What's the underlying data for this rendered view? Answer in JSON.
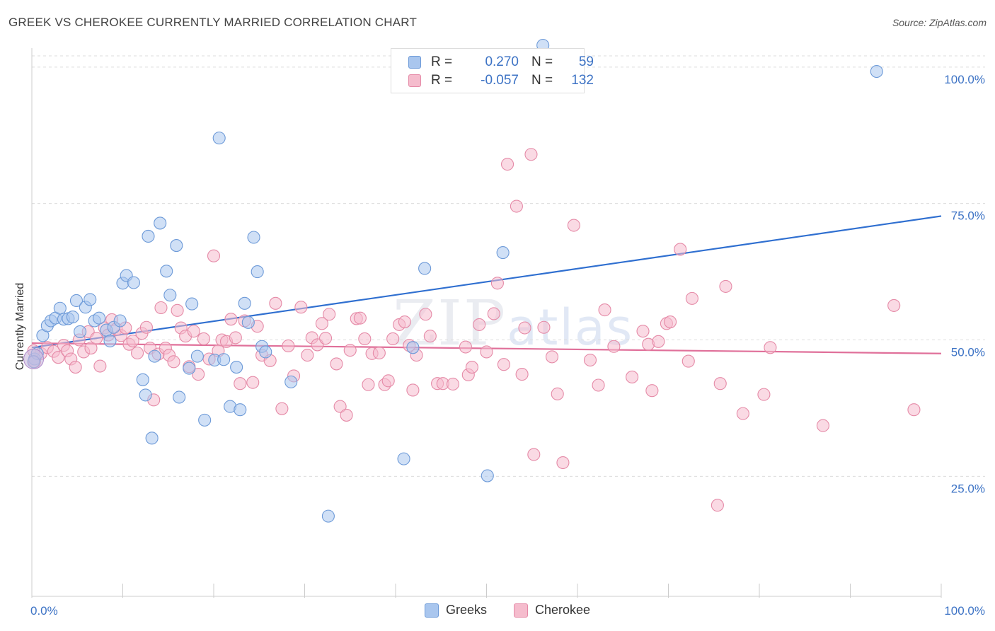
{
  "title": "GREEK VS CHEROKEE CURRENTLY MARRIED CORRELATION CHART",
  "source": "Source: ZipAtlas.com",
  "watermark": {
    "zip": "ZIP",
    "atlas": "atlas"
  },
  "legend": {
    "rows": [
      {
        "r_label": "R =",
        "r_value": "0.270",
        "n_label": "N =",
        "n_value": "59",
        "color": "#a9c6ee",
        "border": "#6d9ad8"
      },
      {
        "r_label": "R =",
        "r_value": "-0.057",
        "n_label": "N =",
        "n_value": "132",
        "color": "#f5bccd",
        "border": "#e58aa7"
      }
    ]
  },
  "bottom_legend": [
    {
      "name": "Greeks",
      "color": "#a9c6ee",
      "border": "#6d9ad8"
    },
    {
      "name": "Cherokee",
      "color": "#f5bccd",
      "border": "#e58aa7"
    }
  ],
  "chart_data": {
    "type": "scatter",
    "title": "GREEK VS CHEROKEE CURRENTLY MARRIED CORRELATION CHART",
    "xlabel": "",
    "ylabel": "Currently Married",
    "xlim": [
      0,
      100
    ],
    "ylim": [
      3,
      104
    ],
    "x_tick_labels": [
      "0.0%",
      "100.0%"
    ],
    "y_ticks": [
      25,
      50,
      75,
      100
    ],
    "y_tick_labels": [
      "25.0%",
      "50.0%",
      "75.0%",
      "100.0%"
    ],
    "grid": true,
    "legend_placement": "top-center",
    "series": [
      {
        "name": "Greeks",
        "color": "#6d9ad8",
        "fill": "#a9c6ee",
        "trend": [
          [
            0,
            48.6
          ],
          [
            100,
            72.7
          ]
        ],
        "points": [
          [
            0.3,
            46.5
          ],
          [
            0.6,
            47.5
          ],
          [
            1.2,
            50.8
          ],
          [
            1.7,
            52.6
          ],
          [
            2.1,
            53.5
          ],
          [
            2.6,
            54
          ],
          [
            3.1,
            55.8
          ],
          [
            3.5,
            53.8
          ],
          [
            4,
            53.9
          ],
          [
            4.5,
            54.2
          ],
          [
            4.9,
            57.2
          ],
          [
            5.3,
            51.5
          ],
          [
            5.9,
            56
          ],
          [
            6.4,
            57.4
          ],
          [
            6.9,
            53.5
          ],
          [
            7.4,
            54
          ],
          [
            8.2,
            51.8
          ],
          [
            8.6,
            49.8
          ],
          [
            9,
            52.3
          ],
          [
            9.7,
            53.5
          ],
          [
            10,
            60.4
          ],
          [
            10.4,
            61.8
          ],
          [
            11.2,
            60.5
          ],
          [
            12.2,
            42.7
          ],
          [
            12.5,
            39.9
          ],
          [
            12.8,
            69
          ],
          [
            13.2,
            32
          ],
          [
            13.5,
            47
          ],
          [
            14.1,
            71.4
          ],
          [
            14.8,
            62.6
          ],
          [
            15.2,
            58.2
          ],
          [
            15.9,
            67.3
          ],
          [
            16.2,
            39.5
          ],
          [
            17.3,
            44.8
          ],
          [
            17.6,
            56.6
          ],
          [
            18.2,
            47
          ],
          [
            19,
            35.3
          ],
          [
            20.1,
            46.3
          ],
          [
            20.6,
            87
          ],
          [
            21.1,
            46.4
          ],
          [
            21.8,
            37.8
          ],
          [
            22.5,
            45
          ],
          [
            22.9,
            37.2
          ],
          [
            23.4,
            56.7
          ],
          [
            23.8,
            53.2
          ],
          [
            24.4,
            68.8
          ],
          [
            24.8,
            62.5
          ],
          [
            25.3,
            48.8
          ],
          [
            25.7,
            47.8
          ],
          [
            28.5,
            42.3
          ],
          [
            32.6,
            17.7
          ],
          [
            40.9,
            28.2
          ],
          [
            41.9,
            48.6
          ],
          [
            43.2,
            63.1
          ],
          [
            50.1,
            25.1
          ],
          [
            51.8,
            66
          ],
          [
            56.2,
            104
          ],
          [
            92.9,
            99.2
          ],
          [
            0.2,
            46
          ]
        ]
      },
      {
        "name": "Cherokee",
        "color": "#e58aa7",
        "fill": "#f5bccd",
        "trend": [
          [
            0,
            49.4
          ],
          [
            100,
            47.5
          ]
        ],
        "points": [
          [
            0.3,
            46
          ],
          [
            1,
            47.5
          ],
          [
            1.7,
            48.6
          ],
          [
            2.4,
            47.9
          ],
          [
            2.9,
            46.8
          ],
          [
            3.5,
            49
          ],
          [
            3.9,
            48
          ],
          [
            4.3,
            46.5
          ],
          [
            4.8,
            45
          ],
          [
            5.2,
            50
          ],
          [
            5.7,
            47.8
          ],
          [
            6.2,
            51.5
          ],
          [
            6.5,
            48.5
          ],
          [
            7.1,
            50.3
          ],
          [
            7.5,
            45.2
          ],
          [
            8,
            52.2
          ],
          [
            8.4,
            50.9
          ],
          [
            8.8,
            53.7
          ],
          [
            9.3,
            52
          ],
          [
            9.8,
            50.8
          ],
          [
            10.3,
            52.2
          ],
          [
            10.7,
            49.2
          ],
          [
            11.1,
            49.8
          ],
          [
            11.6,
            47.6
          ],
          [
            12.1,
            51.2
          ],
          [
            12.6,
            52.3
          ],
          [
            13,
            48.5
          ],
          [
            13.4,
            39
          ],
          [
            13.9,
            47.4
          ],
          [
            14.2,
            55.9
          ],
          [
            14.7,
            48.5
          ],
          [
            15.1,
            47.2
          ],
          [
            15.6,
            46
          ],
          [
            16,
            55.4
          ],
          [
            16.4,
            52.2
          ],
          [
            16.9,
            50.7
          ],
          [
            17.3,
            45.1
          ],
          [
            17.8,
            51.6
          ],
          [
            18.3,
            43.7
          ],
          [
            18.9,
            50.2
          ],
          [
            19.5,
            46.5
          ],
          [
            20,
            65.4
          ],
          [
            20.5,
            48
          ],
          [
            20.9,
            50
          ],
          [
            21.4,
            49.7
          ],
          [
            21.9,
            53.8
          ],
          [
            22.4,
            50.4
          ],
          [
            22.9,
            42
          ],
          [
            23.4,
            53.5
          ],
          [
            24.3,
            42.2
          ],
          [
            24.8,
            52.5
          ],
          [
            25.3,
            47.2
          ],
          [
            26.2,
            46.2
          ],
          [
            26.8,
            56.7
          ],
          [
            27.5,
            37.4
          ],
          [
            28.2,
            48.9
          ],
          [
            28.8,
            43.4
          ],
          [
            29.6,
            56
          ],
          [
            30.3,
            47.2
          ],
          [
            30.8,
            50.4
          ],
          [
            31.4,
            49.1
          ],
          [
            31.9,
            53
          ],
          [
            32.3,
            50.3
          ],
          [
            32.7,
            54.7
          ],
          [
            33.5,
            45.6
          ],
          [
            33.9,
            37.8
          ],
          [
            34.6,
            36.2
          ],
          [
            35,
            48.1
          ],
          [
            35.7,
            53.9
          ],
          [
            36.1,
            54
          ],
          [
            36.6,
            50.2
          ],
          [
            37,
            41.8
          ],
          [
            37.4,
            47.5
          ],
          [
            38.2,
            47.6
          ],
          [
            38.8,
            41.8
          ],
          [
            39.2,
            42.5
          ],
          [
            39.7,
            50.2
          ],
          [
            40.4,
            52.8
          ],
          [
            41,
            53.3
          ],
          [
            41.5,
            49
          ],
          [
            41.9,
            40.8
          ],
          [
            42.3,
            47.2
          ],
          [
            43.3,
            54.7
          ],
          [
            43.8,
            50.7
          ],
          [
            44.6,
            42
          ],
          [
            45.2,
            42
          ],
          [
            46.3,
            41.9
          ],
          [
            47.7,
            48.7
          ],
          [
            48,
            43.6
          ],
          [
            48.4,
            45
          ],
          [
            49.2,
            52.8
          ],
          [
            50,
            47.8
          ],
          [
            50.8,
            54.8
          ],
          [
            51.2,
            60.4
          ],
          [
            51.9,
            45.5
          ],
          [
            52.3,
            82.2
          ],
          [
            53.3,
            74.5
          ],
          [
            53.9,
            43.7
          ],
          [
            54.2,
            52.2
          ],
          [
            54.9,
            84
          ],
          [
            55.2,
            29
          ],
          [
            56.3,
            52.3
          ],
          [
            57.2,
            46.9
          ],
          [
            57.8,
            40.1
          ],
          [
            58.4,
            27.5
          ],
          [
            59.6,
            71
          ],
          [
            61.4,
            46.3
          ],
          [
            62.3,
            41.7
          ],
          [
            63,
            55.5
          ],
          [
            64,
            48.8
          ],
          [
            66,
            43.2
          ],
          [
            67.2,
            51.6
          ],
          [
            67.8,
            49.2
          ],
          [
            68.2,
            40.7
          ],
          [
            68.9,
            49.7
          ],
          [
            69.8,
            53
          ],
          [
            70.2,
            53.3
          ],
          [
            71.3,
            66.6
          ],
          [
            72.2,
            46.1
          ],
          [
            72.6,
            57.6
          ],
          [
            75.4,
            19.7
          ],
          [
            75.7,
            42
          ],
          [
            76.3,
            59.8
          ],
          [
            78.2,
            36.5
          ],
          [
            80.5,
            40
          ],
          [
            81.2,
            48.6
          ],
          [
            87,
            34.3
          ],
          [
            94.8,
            56.3
          ],
          [
            97,
            37.2
          ],
          [
            0.2,
            48
          ]
        ]
      }
    ]
  }
}
